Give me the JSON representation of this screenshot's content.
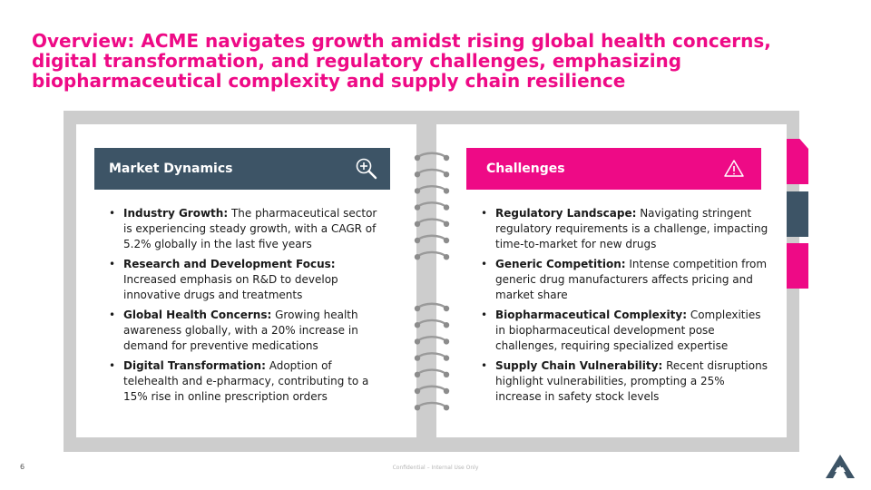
{
  "title": "Overview: ACME navigates growth amidst rising global health concerns, digital transformation, and regulatory challenges, emphasizing biopharmaceutical complexity and supply chain resilience",
  "left_panel": {
    "header": "Market Dynamics",
    "icon": "magnifier-plus-icon",
    "items": [
      {
        "label": "Industry Growth:",
        "text": " The pharmaceutical sector is experiencing steady growth, with a CAGR of 5.2% globally in the last five years"
      },
      {
        "label": "Research and Development Focus:",
        "text": " Increased emphasis on R&D to develop innovative drugs and treatments"
      },
      {
        "label": "Global Health Concerns:",
        "text": " Growing health awareness globally, with a 20% increase in demand for preventive medications"
      },
      {
        "label": "Digital Transformation:",
        "text": " Adoption of telehealth and e-pharmacy, contributing to a 15% rise in online prescription orders"
      }
    ]
  },
  "right_panel": {
    "header": "Challenges",
    "icon": "warning-triangle-icon",
    "items": [
      {
        "label": "Regulatory Landscape:",
        "text": " Navigating stringent regulatory requirements is a challenge, impacting time-to-market for new drugs"
      },
      {
        "label": "Generic Competition:",
        "text": " Intense competition from generic drug manufacturers affects pricing and market share"
      },
      {
        "label": "Biopharmaceutical Complexity:",
        "text": " Complexities in biopharmaceutical development pose challenges, requiring specialized expertise"
      },
      {
        "label": "Supply Chain Vulnerability:",
        "text": " Recent disruptions highlight vulnerabilities, prompting a 25% increase in safety stock levels"
      }
    ]
  },
  "footer": {
    "page_number": "6",
    "confidential": "Confidential – Internal Use Only",
    "logo": "company-logo-icon"
  },
  "colors": {
    "accent": "#ee0a86",
    "dark": "#3d5466",
    "frame": "#cdcdcd"
  }
}
